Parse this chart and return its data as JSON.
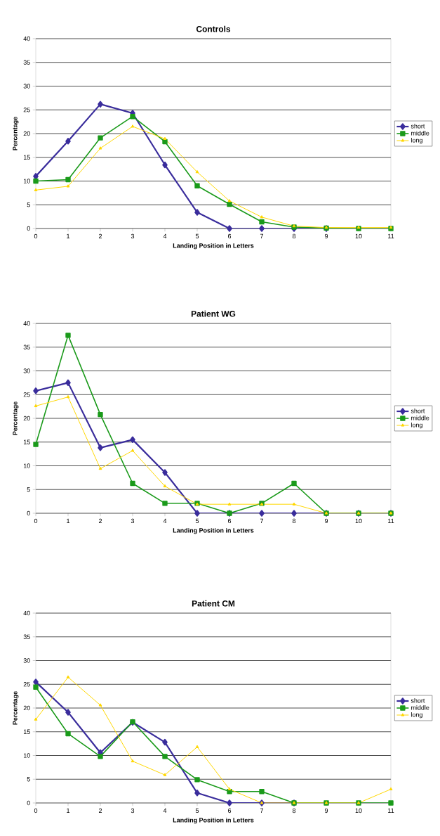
{
  "chart_data": [
    {
      "type": "line",
      "title": "Controls",
      "xlabel": "Landing Position in Letters",
      "ylabel": "Percentage",
      "x": [
        0,
        1,
        2,
        3,
        4,
        5,
        6,
        7,
        8,
        9,
        10,
        11
      ],
      "xlim": [
        0,
        11
      ],
      "xticks": [
        0,
        1,
        2,
        3,
        4,
        5,
        6,
        7,
        8,
        9,
        10,
        11
      ],
      "ylim": [
        0,
        40
      ],
      "yticks": [
        0,
        5,
        10,
        15,
        20,
        25,
        30,
        35,
        40
      ],
      "grid": "y",
      "legend": "right",
      "line_style": "solid",
      "series": [
        {
          "name": "short",
          "color": "#3a2d9c",
          "marker": "diamond",
          "values": [
            11,
            18.4,
            26.2,
            24.3,
            13.4,
            3.4,
            0,
            0,
            0,
            0,
            null,
            null
          ]
        },
        {
          "name": "middle",
          "color": "#1a9a1a",
          "marker": "square",
          "values": [
            10,
            10.3,
            19.1,
            23.6,
            18.3,
            9,
            5.1,
            1.4,
            0.3,
            0.1,
            0,
            0
          ]
        },
        {
          "name": "long",
          "color": "#ffd700",
          "marker": "triangle",
          "values": [
            8.1,
            8.9,
            16.9,
            21.5,
            18.9,
            11.9,
            5.8,
            2.4,
            0.5,
            0.2,
            0.2,
            0.2
          ]
        }
      ]
    },
    {
      "type": "line",
      "title": "Patient WG",
      "xlabel": "Landing Position in Letters",
      "ylabel": "Percentage",
      "x": [
        0,
        1,
        2,
        3,
        4,
        5,
        6,
        7,
        8,
        9,
        10,
        11
      ],
      "xlim": [
        0,
        11
      ],
      "xticks": [
        0,
        1,
        2,
        3,
        4,
        5,
        6,
        7,
        8,
        9,
        10,
        11
      ],
      "ylim": [
        0,
        40
      ],
      "yticks": [
        0,
        5,
        10,
        15,
        20,
        25,
        30,
        35,
        40
      ],
      "grid": "y",
      "legend": "right",
      "line_style": "solid",
      "series": [
        {
          "name": "short",
          "color": "#3a2d9c",
          "marker": "diamond",
          "values": [
            25.8,
            27.5,
            13.8,
            15.5,
            8.6,
            0,
            0,
            0,
            0,
            0,
            0,
            0
          ]
        },
        {
          "name": "middle",
          "color": "#1a9a1a",
          "marker": "square",
          "values": [
            14.5,
            37.5,
            20.8,
            6.3,
            2.1,
            2.1,
            0,
            2.1,
            6.3,
            0,
            0,
            0
          ]
        },
        {
          "name": "long",
          "color": "#ffd700",
          "marker": "triangle",
          "values": [
            22.6,
            24.5,
            9.4,
            13.2,
            5.7,
            1.9,
            1.9,
            1.9,
            1.9,
            0,
            0,
            0
          ]
        }
      ]
    },
    {
      "type": "line",
      "title": "Patient CM",
      "xlabel": "Landing Position in Letters",
      "ylabel": "Percentage",
      "x": [
        0,
        1,
        2,
        3,
        4,
        5,
        6,
        7,
        8,
        9,
        10,
        11
      ],
      "xlim": [
        0,
        11
      ],
      "xticks": [
        0,
        1,
        2,
        3,
        4,
        5,
        6,
        7,
        8,
        9,
        10,
        11
      ],
      "ylim": [
        0,
        40
      ],
      "yticks": [
        0,
        5,
        10,
        15,
        20,
        25,
        30,
        35,
        40
      ],
      "grid": "y",
      "legend": "right",
      "line_style": "solid",
      "series": [
        {
          "name": "short",
          "color": "#3a2d9c",
          "marker": "diamond",
          "values": [
            25.5,
            19.1,
            10.6,
            17.0,
            12.8,
            2.1,
            0,
            0,
            0,
            null,
            null,
            null
          ]
        },
        {
          "name": "middle",
          "color": "#1a9a1a",
          "marker": "square",
          "values": [
            24.4,
            14.6,
            9.8,
            17.1,
            9.8,
            4.9,
            2.4,
            2.4,
            0,
            0,
            0,
            0
          ]
        },
        {
          "name": "long",
          "color": "#ffd700",
          "marker": "triangle",
          "values": [
            17.6,
            26.5,
            20.6,
            8.8,
            5.9,
            11.8,
            2.9,
            0,
            0,
            0,
            0,
            2.9
          ]
        }
      ]
    }
  ]
}
